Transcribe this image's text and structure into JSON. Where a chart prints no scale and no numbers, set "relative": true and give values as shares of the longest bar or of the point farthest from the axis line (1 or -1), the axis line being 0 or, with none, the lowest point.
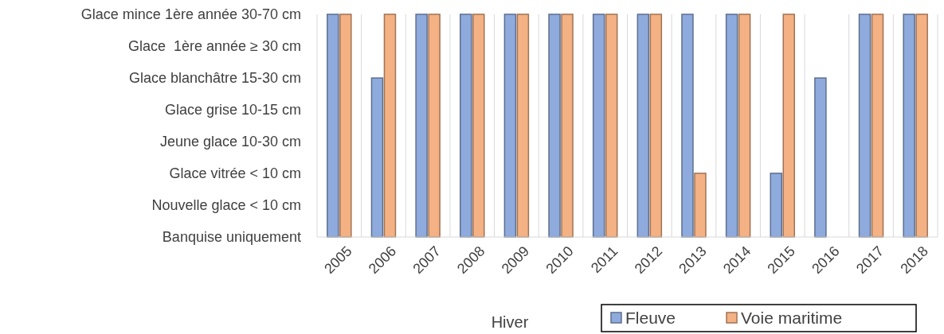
{
  "chart_data": {
    "type": "bar",
    "xlabel": "Hiver",
    "relative": true,
    "categories": [
      "2005",
      "2006",
      "2007",
      "2008",
      "2009",
      "2010",
      "2011",
      "2012",
      "2013",
      "2014",
      "2015",
      "2016",
      "2017",
      "2018"
    ],
    "series": [
      {
        "name": "Fleuve",
        "color": "#8faadc",
        "values": [
          1,
          0.714,
          1,
          1,
          1,
          1,
          1,
          1,
          1,
          1,
          0.286,
          0.714,
          1,
          1
        ]
      },
      {
        "name": "Voie maritime",
        "color": "#f4b183",
        "values": [
          1,
          1,
          1,
          1,
          1,
          1,
          1,
          1,
          0.286,
          1,
          1,
          0,
          1,
          1
        ]
      }
    ],
    "annotations": [
      "Glace mince 1ère année 30-70 cm",
      "Glace  1ère année ≥ 30 cm",
      "Glace blanchâtre 15-30 cm",
      "Glace grise 10-15 cm",
      "Jeune glace 10-30 cm",
      "Glace vitrée < 10 cm",
      "Nouvelle glace < 10 cm",
      "Banquise uniquement"
    ],
    "grid": "x",
    "legend": "bottom right"
  }
}
